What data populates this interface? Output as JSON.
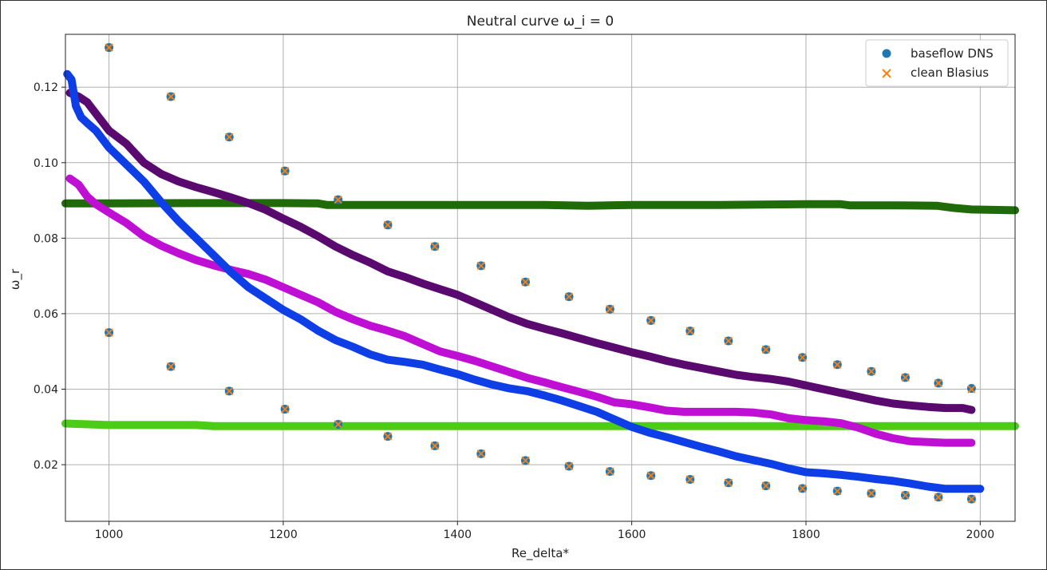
{
  "chart_data": {
    "type": "scatter",
    "title": "Neutral curve ω_i = 0",
    "xlabel": "Re_delta*",
    "ylabel": "ω_r",
    "xlim": [
      950,
      2040
    ],
    "ylim": [
      0.005,
      0.134
    ],
    "xticks": [
      1000,
      1200,
      1400,
      1600,
      1800,
      2000
    ],
    "yticks": [
      0.02,
      0.04,
      0.06,
      0.08,
      0.1,
      0.12
    ],
    "xtick_labels": [
      "1000",
      "1200",
      "1400",
      "1600",
      "1800",
      "2000"
    ],
    "ytick_labels": [
      "0.02",
      "0.04",
      "0.06",
      "0.08",
      "0.10",
      "0.12"
    ],
    "grid": true,
    "legend_position": "top-right",
    "series": [
      {
        "name": "baseflow DNS",
        "marker": "circle",
        "color": "#1f77b4",
        "x": [
          1000,
          1071,
          1138,
          1202,
          1263,
          1320,
          1374,
          1427,
          1478,
          1528,
          1575,
          1622,
          1667,
          1711,
          1754,
          1796,
          1836,
          1875,
          1914,
          1952,
          1990,
          1000,
          1071,
          1138,
          1202,
          1263,
          1320,
          1374,
          1427,
          1478,
          1528,
          1575,
          1622,
          1667,
          1711,
          1754,
          1796,
          1836,
          1875,
          1914,
          1952,
          1990
        ],
        "y": [
          0.1305,
          0.1175,
          0.1068,
          0.0978,
          0.0902,
          0.0835,
          0.0778,
          0.0727,
          0.0684,
          0.0645,
          0.0612,
          0.0582,
          0.0554,
          0.0528,
          0.0505,
          0.0484,
          0.0465,
          0.0447,
          0.0431,
          0.0416,
          0.0402,
          0.055,
          0.046,
          0.0395,
          0.0347,
          0.0307,
          0.0275,
          0.025,
          0.0229,
          0.0211,
          0.0196,
          0.0182,
          0.0171,
          0.0161,
          0.0152,
          0.0144,
          0.0137,
          0.013,
          0.0124,
          0.0119,
          0.0114,
          0.0109
        ]
      },
      {
        "name": "clean Blasius",
        "marker": "x",
        "color": "#ff7f0e",
        "x": [
          1000,
          1071,
          1138,
          1202,
          1263,
          1320,
          1374,
          1427,
          1478,
          1528,
          1575,
          1622,
          1667,
          1711,
          1754,
          1796,
          1836,
          1875,
          1914,
          1952,
          1990,
          1000,
          1071,
          1138,
          1202,
          1263,
          1320,
          1374,
          1427,
          1478,
          1528,
          1575,
          1622,
          1667,
          1711,
          1754,
          1796,
          1836,
          1875,
          1914,
          1952,
          1990
        ],
        "y": [
          0.1305,
          0.1175,
          0.1068,
          0.0978,
          0.0902,
          0.0835,
          0.0778,
          0.0727,
          0.0684,
          0.0645,
          0.0612,
          0.0582,
          0.0554,
          0.0528,
          0.0505,
          0.0484,
          0.0465,
          0.0447,
          0.0431,
          0.0416,
          0.04,
          0.055,
          0.046,
          0.0395,
          0.0347,
          0.0307,
          0.0275,
          0.025,
          0.0229,
          0.0211,
          0.0196,
          0.0182,
          0.0171,
          0.0161,
          0.0152,
          0.0144,
          0.0137,
          0.013,
          0.0124,
          0.0119,
          0.0114,
          0.0109
        ]
      }
    ],
    "curves": [
      {
        "color": "#1f6b0a",
        "x": [
          950,
          1000,
          1100,
          1200,
          1240,
          1250,
          1300,
          1400,
          1500,
          1550,
          1600,
          1700,
          1800,
          1840,
          1850,
          1900,
          1950,
          1970,
          1990,
          2040
        ],
        "y": [
          0.0892,
          0.0892,
          0.0893,
          0.0893,
          0.0892,
          0.0888,
          0.0888,
          0.0888,
          0.0888,
          0.0886,
          0.0888,
          0.0888,
          0.089,
          0.089,
          0.0887,
          0.0887,
          0.0886,
          0.088,
          0.0876,
          0.0874
        ]
      },
      {
        "color": "#4ccc17",
        "x": [
          950,
          1000,
          1100,
          1120,
          1200,
          1300,
          1400,
          1500,
          1600,
          1700,
          1800,
          1900,
          2000,
          2040
        ],
        "y": [
          0.0309,
          0.0305,
          0.0305,
          0.0302,
          0.0302,
          0.0302,
          0.0302,
          0.0302,
          0.0302,
          0.0302,
          0.0302,
          0.0302,
          0.0302,
          0.0302
        ]
      },
      {
        "color": "#5a0a6e",
        "x": [
          955,
          965,
          975,
          985,
          1000,
          1020,
          1040,
          1060,
          1080,
          1100,
          1120,
          1140,
          1160,
          1180,
          1200,
          1220,
          1240,
          1260,
          1280,
          1300,
          1320,
          1340,
          1360,
          1380,
          1400,
          1420,
          1440,
          1460,
          1480,
          1500,
          1520,
          1540,
          1560,
          1580,
          1600,
          1620,
          1640,
          1660,
          1680,
          1700,
          1720,
          1740,
          1760,
          1780,
          1800,
          1820,
          1840,
          1860,
          1880,
          1900,
          1920,
          1940,
          1960,
          1980,
          1990
        ],
        "y": [
          0.1185,
          0.1175,
          0.116,
          0.113,
          0.1085,
          0.105,
          0.1,
          0.097,
          0.095,
          0.0935,
          0.0922,
          0.0908,
          0.0893,
          0.0875,
          0.0852,
          0.083,
          0.0805,
          0.0778,
          0.0755,
          0.0735,
          0.0712,
          0.0697,
          0.068,
          0.0665,
          0.065,
          0.063,
          0.061,
          0.059,
          0.0573,
          0.056,
          0.0548,
          0.0535,
          0.0522,
          0.051,
          0.0498,
          0.0487,
          0.0475,
          0.0465,
          0.0456,
          0.0447,
          0.0438,
          0.0432,
          0.0427,
          0.042,
          0.041,
          0.04,
          0.039,
          0.038,
          0.037,
          0.0362,
          0.0357,
          0.0353,
          0.035,
          0.035,
          0.0345
        ]
      },
      {
        "color": "#c00fd4",
        "x": [
          955,
          965,
          975,
          985,
          1000,
          1020,
          1040,
          1060,
          1080,
          1100,
          1120,
          1140,
          1160,
          1180,
          1200,
          1220,
          1240,
          1260,
          1280,
          1300,
          1320,
          1340,
          1360,
          1380,
          1400,
          1420,
          1440,
          1460,
          1480,
          1500,
          1520,
          1540,
          1560,
          1580,
          1600,
          1620,
          1640,
          1660,
          1680,
          1700,
          1720,
          1740,
          1760,
          1780,
          1800,
          1820,
          1840,
          1860,
          1880,
          1900,
          1920,
          1940,
          1960,
          1980,
          1990
        ],
        "y": [
          0.0958,
          0.0942,
          0.091,
          0.089,
          0.0868,
          0.084,
          0.0805,
          0.078,
          0.076,
          0.0742,
          0.0728,
          0.0716,
          0.0705,
          0.069,
          0.067,
          0.065,
          0.063,
          0.0605,
          0.0585,
          0.0568,
          0.0555,
          0.054,
          0.052,
          0.05,
          0.0488,
          0.0475,
          0.046,
          0.0445,
          0.043,
          0.0418,
          0.0405,
          0.0393,
          0.038,
          0.0365,
          0.036,
          0.0352,
          0.0343,
          0.034,
          0.034,
          0.034,
          0.034,
          0.0338,
          0.0333,
          0.0323,
          0.0318,
          0.0315,
          0.031,
          0.0298,
          0.0282,
          0.027,
          0.0262,
          0.026,
          0.0258,
          0.0258,
          0.0258
        ]
      },
      {
        "color": "#0d3ee6",
        "x": [
          952,
          957,
          962,
          968,
          975,
          985,
          1000,
          1020,
          1040,
          1060,
          1080,
          1100,
          1120,
          1140,
          1160,
          1180,
          1200,
          1220,
          1240,
          1260,
          1280,
          1300,
          1320,
          1340,
          1360,
          1380,
          1400,
          1420,
          1440,
          1460,
          1480,
          1500,
          1520,
          1540,
          1560,
          1580,
          1600,
          1620,
          1640,
          1660,
          1680,
          1700,
          1720,
          1740,
          1760,
          1780,
          1800,
          1820,
          1840,
          1860,
          1880,
          1900,
          1920,
          1940,
          1960,
          1980,
          2000
        ],
        "y": [
          0.1235,
          0.122,
          0.115,
          0.112,
          0.1105,
          0.1085,
          0.104,
          0.0995,
          0.095,
          0.0895,
          0.0845,
          0.08,
          0.0755,
          0.071,
          0.067,
          0.064,
          0.061,
          0.0585,
          0.0555,
          0.053,
          0.0512,
          0.0492,
          0.0478,
          0.0472,
          0.0465,
          0.0452,
          0.044,
          0.0425,
          0.0412,
          0.0402,
          0.0395,
          0.0383,
          0.037,
          0.0355,
          0.034,
          0.032,
          0.03,
          0.0285,
          0.0273,
          0.026,
          0.0247,
          0.0235,
          0.0222,
          0.0212,
          0.0202,
          0.019,
          0.018,
          0.0177,
          0.0173,
          0.0168,
          0.0162,
          0.0157,
          0.015,
          0.0142,
          0.0136,
          0.0136,
          0.0136
        ]
      }
    ]
  }
}
